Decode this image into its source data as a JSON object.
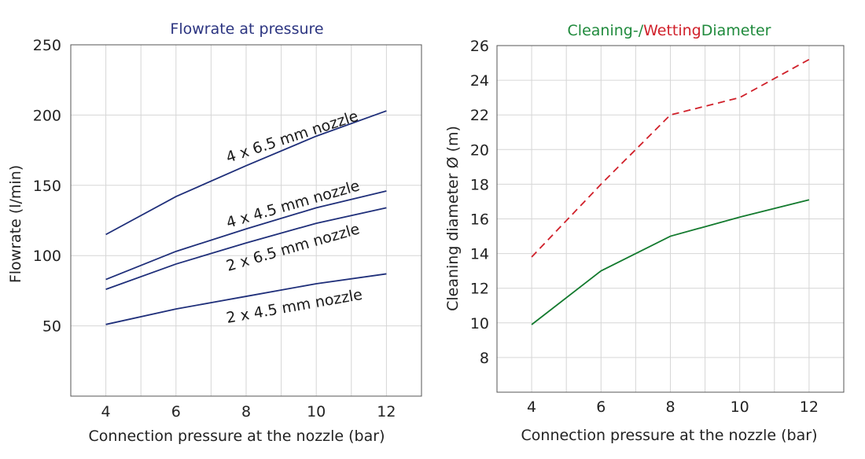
{
  "chart_data": [
    {
      "type": "line",
      "title": "Flowrate at pressure",
      "title_color": "#2b3480",
      "xlabel": "Connection pressure at the nozzle (bar)",
      "ylabel": "Flowrate (l/min)",
      "xlim": [
        3,
        13
      ],
      "ylim": [
        0,
        250
      ],
      "x_ticks": [
        4,
        6,
        8,
        10,
        12
      ],
      "y_ticks": [
        50,
        100,
        150,
        200,
        250
      ],
      "grid": true,
      "x": [
        4,
        6,
        8,
        10,
        12
      ],
      "series": [
        {
          "name": "4 x 6.5 mm nozzle",
          "values": [
            115,
            142,
            164,
            185,
            203
          ],
          "color": "#1f2f7a",
          "style": "solid"
        },
        {
          "name": "4 x 4.5 mm nozzle",
          "values": [
            83,
            103,
            119,
            134,
            146
          ],
          "color": "#1f2f7a",
          "style": "solid"
        },
        {
          "name": "2 x 6.5 mm nozzle",
          "values": [
            76,
            94,
            109,
            123,
            134
          ],
          "color": "#1f2f7a",
          "style": "solid"
        },
        {
          "name": "2 x 4.5 mm nozzle",
          "values": [
            51,
            62,
            71,
            80,
            87
          ],
          "color": "#1f2f7a",
          "style": "solid"
        }
      ]
    },
    {
      "type": "line",
      "title_parts": [
        {
          "text": "Cleaning-/",
          "color": "#1f8a3c"
        },
        {
          "text": "Wetting",
          "color": "#d0202a"
        },
        {
          "text": "Diameter",
          "color": "#1f8a3c"
        }
      ],
      "xlabel": "Connection pressure at the nozzle (bar)",
      "ylabel": "Cleaning diameter Ø (m)",
      "xlim": [
        3,
        13
      ],
      "ylim": [
        6,
        26
      ],
      "x_ticks": [
        4,
        6,
        8,
        10,
        12
      ],
      "y_ticks": [
        8,
        10,
        12,
        14,
        16,
        18,
        20,
        22,
        24,
        26
      ],
      "grid": true,
      "x": [
        4,
        6,
        8,
        10,
        12
      ],
      "series": [
        {
          "values": [
            13.8,
            18,
            22,
            23,
            25.2
          ],
          "color": "#d0202a",
          "style": "dashed"
        },
        {
          "values": [
            9.9,
            13,
            15,
            16.1,
            17.1
          ],
          "color": "#137a2e",
          "style": "solid"
        }
      ]
    }
  ]
}
